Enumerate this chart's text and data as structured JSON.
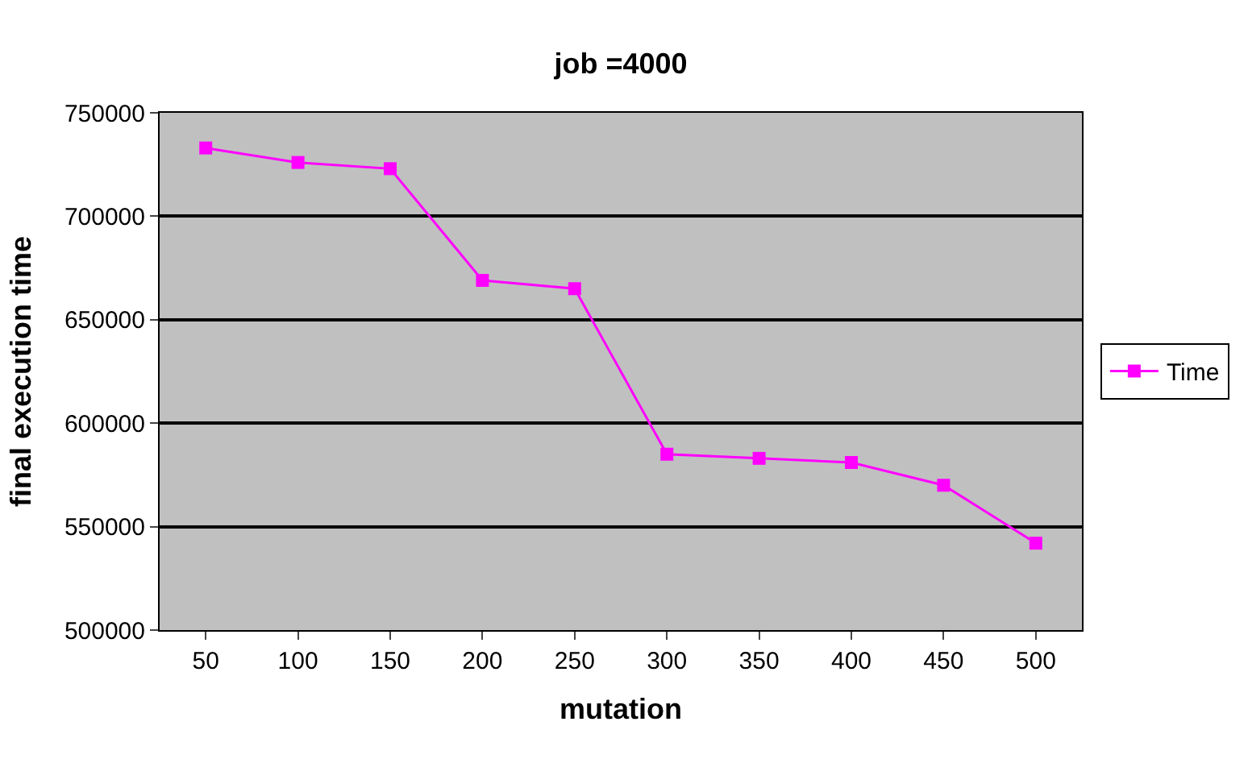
{
  "chart_data": {
    "type": "line",
    "title": "job =4000",
    "xlabel": "mutation",
    "ylabel": "final execution time",
    "categories": [
      "50",
      "100",
      "150",
      "200",
      "250",
      "300",
      "350",
      "400",
      "450",
      "500"
    ],
    "series": [
      {
        "name": "Time",
        "color": "#ff00ff",
        "values": [
          733000,
          726000,
          723000,
          669000,
          665000,
          585000,
          583000,
          581000,
          570000,
          542000
        ]
      }
    ],
    "ylim": [
      500000,
      750000
    ],
    "yticks": [
      500000,
      550000,
      600000,
      650000,
      700000,
      750000
    ],
    "grid": "y",
    "legend": "right",
    "marker": "square",
    "line_style": "solid"
  }
}
